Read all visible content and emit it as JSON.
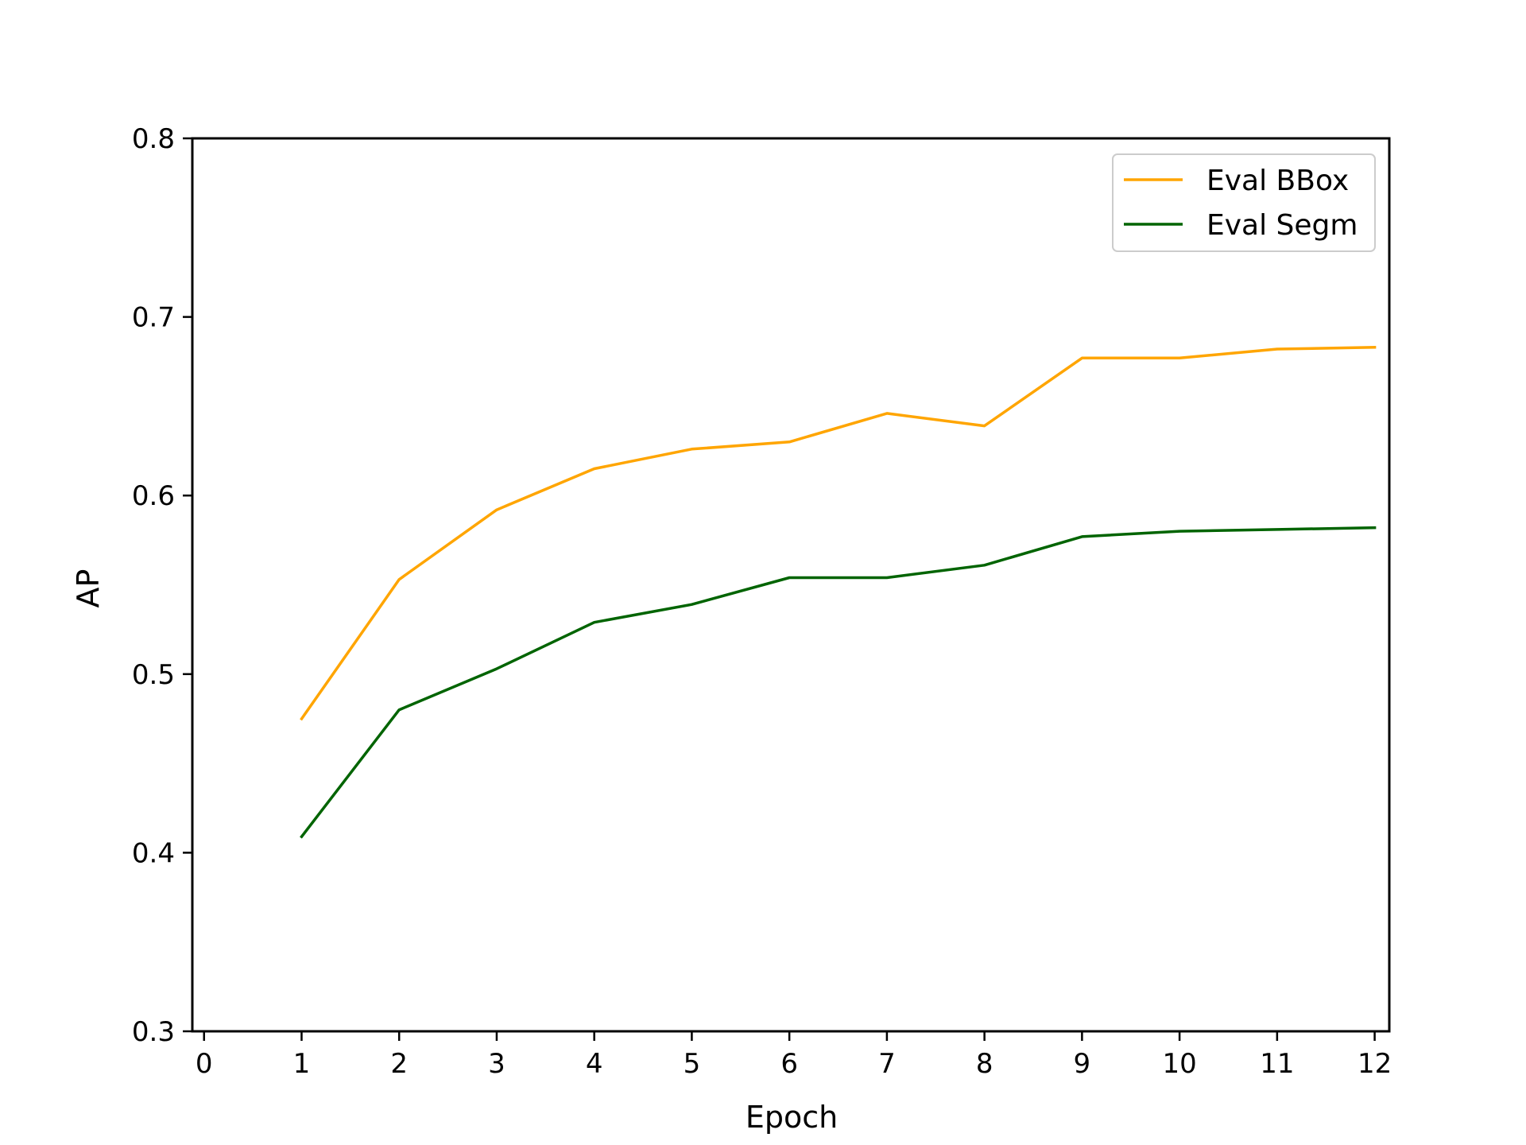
{
  "chart_data": {
    "type": "line",
    "title": "",
    "xlabel": "Epoch",
    "ylabel": "AP",
    "xlim": [
      -0.12,
      12.15
    ],
    "ylim": [
      0.3,
      0.8
    ],
    "x_ticks": [
      "0",
      "1",
      "2",
      "3",
      "4",
      "5",
      "6",
      "7",
      "8",
      "9",
      "10",
      "11",
      "12"
    ],
    "y_ticks": [
      "0.3",
      "0.4",
      "0.5",
      "0.6",
      "0.7",
      "0.8"
    ],
    "grid": false,
    "legend_position": "top-right",
    "x": [
      1,
      2,
      3,
      4,
      5,
      6,
      7,
      8,
      9,
      10,
      11,
      12
    ],
    "series": [
      {
        "name": "Eval BBox",
        "color": "#ffa500",
        "values": [
          0.475,
          0.553,
          0.592,
          0.615,
          0.626,
          0.63,
          0.646,
          0.639,
          0.677,
          0.677,
          0.682,
          0.683
        ]
      },
      {
        "name": "Eval Segm",
        "color": "#006400",
        "values": [
          0.409,
          0.48,
          0.503,
          0.529,
          0.539,
          0.554,
          0.554,
          0.561,
          0.577,
          0.58,
          0.581,
          0.582
        ]
      }
    ]
  }
}
